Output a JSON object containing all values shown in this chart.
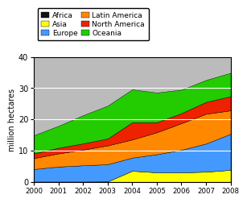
{
  "years": [
    2000,
    2001,
    2002,
    2003,
    2004,
    2005,
    2006,
    2007,
    2008
  ],
  "Africa": [
    0.1,
    0.1,
    0.1,
    0.1,
    0.1,
    0.1,
    0.1,
    0.1,
    0.1
  ],
  "Asia": [
    0.05,
    0.05,
    0.05,
    0.1,
    3.5,
    3.0,
    3.0,
    3.2,
    3.8
  ],
  "Europe": [
    4.0,
    4.8,
    5.2,
    5.5,
    4.2,
    5.8,
    7.2,
    9.0,
    11.5
  ],
  "Latin_America": [
    3.5,
    4.2,
    5.0,
    6.0,
    5.8,
    7.0,
    8.5,
    9.5,
    7.5
  ],
  "North_America": [
    1.5,
    1.8,
    2.0,
    2.2,
    5.5,
    3.2,
    3.2,
    3.8,
    4.5
  ],
  "Oceania": [
    5.8,
    7.0,
    9.0,
    10.5,
    10.5,
    9.5,
    7.5,
    7.0,
    7.5
  ],
  "colors": {
    "Africa": "#111111",
    "Asia": "#ffff00",
    "Europe": "#4499ff",
    "Latin_America": "#ff8800",
    "North_America": "#ee2200",
    "Oceania": "#22cc00"
  },
  "ylabel": "million hectares",
  "ylim": [
    0,
    40
  ],
  "yticks": [
    0,
    10,
    20,
    30,
    40
  ],
  "grid_color": "#aaaaaa",
  "bg_color": "#bbbbbb",
  "fig_bg": "#ffffff"
}
